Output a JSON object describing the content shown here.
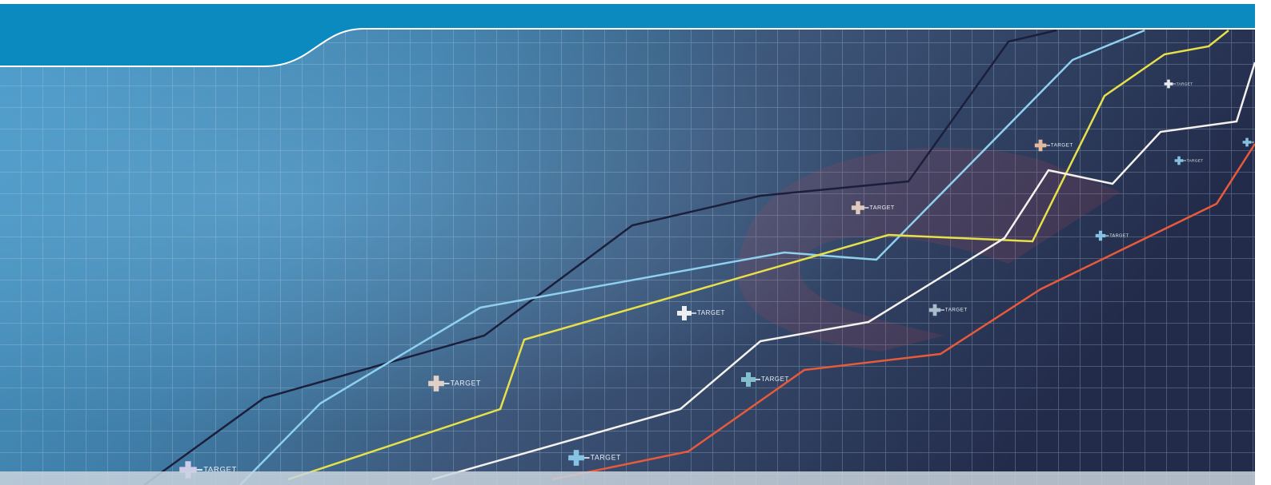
{
  "banner": {
    "targets": [
      "TARGET",
      "TARGET",
      "TARGET",
      "TARGET",
      "TARGET",
      "TARGET",
      "TARGET",
      "TARGET",
      "TARGET",
      "TARGET",
      "TARGET",
      "TARGET"
    ]
  }
}
